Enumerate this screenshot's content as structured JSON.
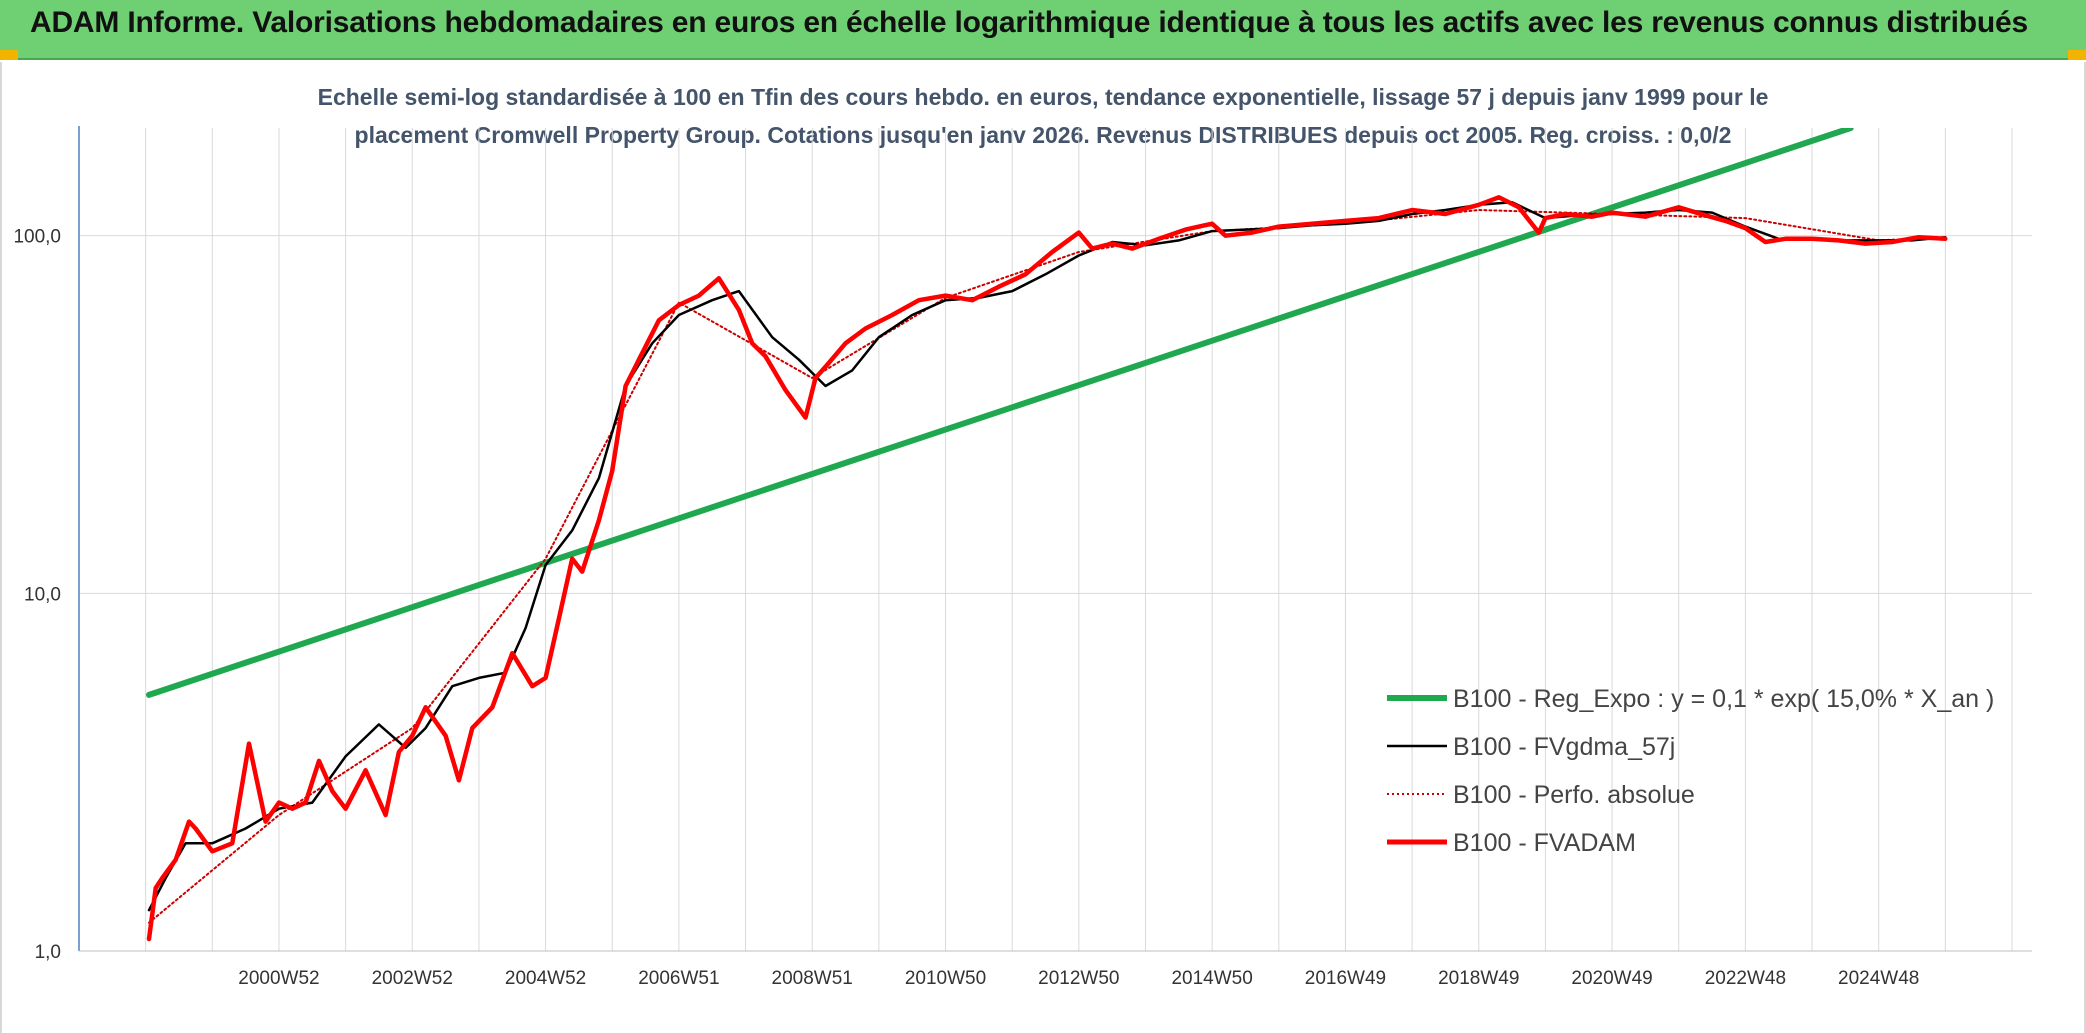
{
  "banner": {
    "title": "ADAM Informe. Valorisations hebdomadaires en euros en échelle logarithmique identique à tous les actifs avec les revenus connus distribués"
  },
  "colors": {
    "banner_bg": "#6fcf73",
    "regression": "#1fa84f",
    "fvgdma": "#000000",
    "perfo": "#cc0000",
    "fvadam": "#ff0000",
    "title_text": "#44546a"
  },
  "chart_data": {
    "type": "line",
    "title_lines": [
      "Echelle semi-log standardisée à 100 en Tfin des cours hebdo. en euros, tendance exponentielle, lissage 57 j depuis janv 1999 pour le",
      "placement Cromwell Property Group. Cotations jusqu'en janv 2026. Revenus DISTRIBUES depuis oct 2005. Reg. croiss. : 0,0/2"
    ],
    "y_scale": "log",
    "ylim": [
      1,
      200
    ],
    "y_ticks": [
      {
        "value": 1,
        "label": "1,0"
      },
      {
        "value": 10,
        "label": "10,0"
      },
      {
        "value": 100,
        "label": "100,0"
      }
    ],
    "xlim": [
      1998.0,
      2027.3
    ],
    "x_ticks": [
      {
        "value": 2001.0,
        "label": "2000W52"
      },
      {
        "value": 2003.0,
        "label": "2002W52"
      },
      {
        "value": 2005.0,
        "label": "2004W52"
      },
      {
        "value": 2007.0,
        "label": "2006W51"
      },
      {
        "value": 2009.0,
        "label": "2008W51"
      },
      {
        "value": 2011.0,
        "label": "2010W50"
      },
      {
        "value": 2013.0,
        "label": "2012W50"
      },
      {
        "value": 2015.0,
        "label": "2014W50"
      },
      {
        "value": 2017.0,
        "label": "2016W49"
      },
      {
        "value": 2019.0,
        "label": "2018W49"
      },
      {
        "value": 2021.0,
        "label": "2020W49"
      },
      {
        "value": 2023.0,
        "label": "2022W48"
      },
      {
        "value": 2025.0,
        "label": "2024W48"
      }
    ],
    "grid": true,
    "legend_position": "bottom-right",
    "series": [
      {
        "name": "B100 - Reg_Expo : y = 0,1 * exp( 15,0% *  X_an )",
        "style": "thick-solid",
        "color": "#1fa84f",
        "x": [
          1999.05,
          2024.58
        ],
        "y": [
          5.2,
          200
        ]
      },
      {
        "name": "B100 - FVgdma_57j",
        "style": "solid",
        "color": "#000000",
        "x": [
          1999.05,
          1999.3,
          1999.6,
          2000.0,
          2000.5,
          2001.0,
          2001.5,
          2002.0,
          2002.5,
          2002.9,
          2003.2,
          2003.6,
          2004.0,
          2004.4,
          2004.7,
          2005.0,
          2005.4,
          2005.8,
          2006.2,
          2006.6,
          2007.0,
          2007.5,
          2007.9,
          2008.4,
          2008.8,
          2009.2,
          2009.6,
          2010.0,
          2010.5,
          2011.0,
          2011.5,
          2012.0,
          2012.5,
          2013.0,
          2013.5,
          2014.0,
          2014.5,
          2015.0,
          2015.5,
          2016.0,
          2016.5,
          2017.0,
          2017.5,
          2018.0,
          2018.5,
          2019.0,
          2019.5,
          2020.0,
          2020.5,
          2021.0,
          2021.5,
          2022.0,
          2022.5,
          2023.0,
          2023.5,
          2024.0,
          2024.5,
          2025.0,
          2025.5,
          2026.0
        ],
        "y": [
          1.3,
          1.6,
          2.0,
          2.0,
          2.2,
          2.5,
          2.6,
          3.5,
          4.3,
          3.7,
          4.2,
          5.5,
          5.8,
          6.0,
          8.0,
          12.0,
          15.0,
          21.0,
          38.0,
          50.0,
          60.0,
          66.0,
          70.0,
          52.0,
          45.0,
          38.0,
          42.0,
          52.0,
          60.0,
          66.0,
          67.0,
          70.0,
          78.0,
          88.0,
          96.0,
          94.0,
          97.0,
          103.0,
          104.0,
          105.0,
          107.0,
          108.0,
          110.0,
          115.0,
          118.0,
          122.0,
          124.0,
          112.0,
          114.0,
          115.0,
          116.0,
          118.0,
          116.0,
          106.0,
          98.0,
          98.0,
          97.0,
          97.0,
          97.0,
          99.0
        ]
      },
      {
        "name": "B100 - Perfo. absolue",
        "style": "dotted",
        "color": "#cc0000",
        "x": [
          1999.05,
          2001.0,
          2003.0,
          2005.0,
          2007.0,
          2009.0,
          2011.0,
          2013.0,
          2015.0,
          2017.0,
          2019.0,
          2021.0,
          2023.0,
          2025.0,
          2026.0
        ],
        "y": [
          1.2,
          2.4,
          4.2,
          12.5,
          65.0,
          40.0,
          67.0,
          90.0,
          103.0,
          108.0,
          118.0,
          115.0,
          112.0,
          97.0,
          99.0
        ]
      },
      {
        "name": "B100 - FVADAM",
        "style": "thick-solid",
        "color": "#ff0000",
        "x": [
          1999.05,
          1999.15,
          1999.25,
          1999.45,
          1999.65,
          1999.75,
          2000.0,
          2000.3,
          2000.55,
          2000.8,
          2001.0,
          2001.2,
          2001.4,
          2001.6,
          2001.8,
          2002.0,
          2002.3,
          2002.6,
          2002.8,
          2003.0,
          2003.2,
          2003.5,
          2003.7,
          2003.9,
          2004.2,
          2004.5,
          2004.8,
          2005.0,
          2005.2,
          2005.4,
          2005.55,
          2005.8,
          2006.0,
          2006.2,
          2006.4,
          2006.7,
          2007.0,
          2007.3,
          2007.6,
          2007.9,
          2008.1,
          2008.3,
          2008.6,
          2008.9,
          2009.05,
          2009.2,
          2009.5,
          2009.8,
          2010.2,
          2010.6,
          2011.0,
          2011.4,
          2011.8,
          2012.2,
          2012.6,
          2013.0,
          2013.2,
          2013.5,
          2013.8,
          2014.2,
          2014.6,
          2015.0,
          2015.2,
          2015.6,
          2016.0,
          2016.5,
          2017.0,
          2017.5,
          2018.0,
          2018.5,
          2019.0,
          2019.3,
          2019.6,
          2019.9,
          2020.0,
          2020.3,
          2020.7,
          2021.0,
          2021.5,
          2022.0,
          2022.4,
          2022.7,
          2023.0,
          2023.3,
          2023.6,
          2024.0,
          2024.4,
          2024.8,
          2025.2,
          2025.6,
          2026.0
        ],
        "y": [
          1.08,
          1.5,
          1.6,
          1.8,
          2.3,
          2.2,
          1.9,
          2.0,
          3.8,
          2.3,
          2.6,
          2.5,
          2.6,
          3.4,
          2.8,
          2.5,
          3.2,
          2.4,
          3.6,
          4.0,
          4.8,
          4.0,
          3.0,
          4.2,
          4.8,
          6.8,
          5.5,
          5.8,
          8.5,
          12.5,
          11.5,
          16.0,
          22.0,
          38.0,
          45.0,
          58.0,
          64.0,
          68.0,
          76.0,
          62.0,
          50.0,
          46.0,
          37.0,
          31.0,
          40.0,
          43.0,
          50.0,
          55.0,
          60.0,
          66.0,
          68.0,
          66.0,
          72.0,
          78.0,
          90.0,
          102.0,
          92.0,
          95.0,
          92.0,
          98.0,
          104.0,
          108.0,
          100.0,
          102.0,
          106.0,
          108.0,
          110.0,
          112.0,
          118.0,
          115.0,
          122.0,
          128.0,
          120.0,
          102.0,
          112.0,
          115.0,
          113.0,
          116.0,
          113.0,
          120.0,
          114.0,
          110.0,
          105.0,
          96.0,
          98.0,
          98.0,
          97.0,
          95.0,
          96.0,
          99.0,
          98.0
        ]
      }
    ]
  }
}
